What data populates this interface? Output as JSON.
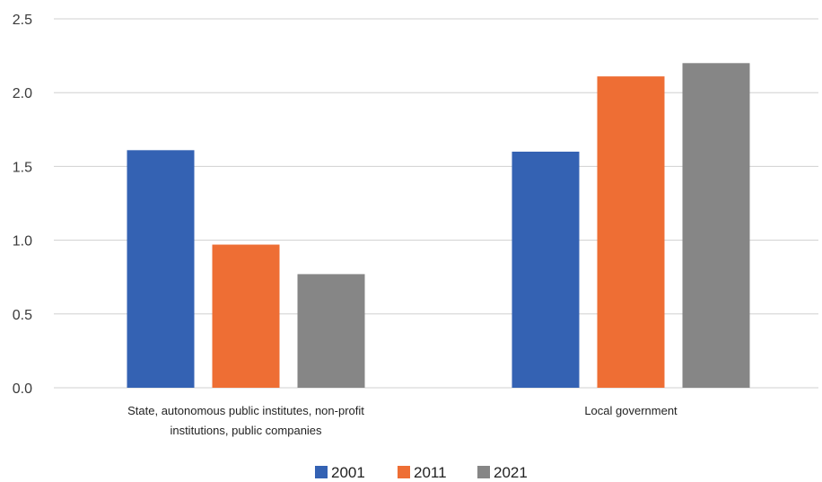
{
  "chart_data": {
    "type": "bar",
    "categories": [
      [
        "State, autonomous public institutes, non-profit",
        "institutions, public companies"
      ],
      [
        "Local government"
      ]
    ],
    "series": [
      {
        "name": "2001",
        "values": [
          1.61,
          1.6
        ],
        "color": "#3462b3"
      },
      {
        "name": "2011",
        "values": [
          0.97,
          2.11
        ],
        "color": "#ee6e34"
      },
      {
        "name": "2021",
        "values": [
          0.77,
          2.2
        ],
        "color": "#868686"
      }
    ],
    "title": "",
    "xlabel": "",
    "ylabel": "",
    "ylim": [
      0,
      2.5
    ],
    "yticks": [
      "0.0",
      "0.5",
      "1.0",
      "1.5",
      "2.0",
      "2.5"
    ],
    "ytick_values": [
      0,
      0.5,
      1.0,
      1.5,
      2.0,
      2.5
    ],
    "grid": true,
    "legend_position": "bottom"
  }
}
